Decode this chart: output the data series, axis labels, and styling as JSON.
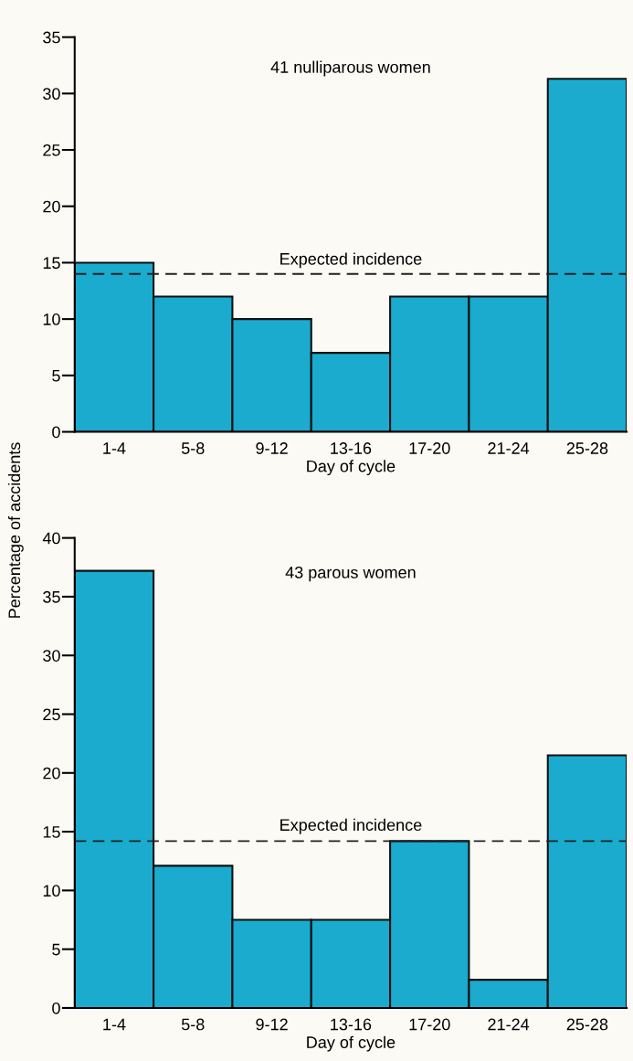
{
  "chart_data": [
    {
      "type": "bar",
      "title": "41 nulliparous women",
      "xlabel": "Day of cycle",
      "ylabel": "Percentage of accidents",
      "categories": [
        "1-4",
        "5-8",
        "9-12",
        "13-16",
        "17-20",
        "21-24",
        "25-28"
      ],
      "series": [
        {
          "color": "#1aabcf",
          "values": [
            15,
            12,
            10,
            7,
            12,
            12,
            31.3
          ]
        }
      ],
      "ylim": [
        0,
        35
      ],
      "yticks": [
        0,
        5,
        10,
        15,
        20,
        25,
        30,
        35
      ],
      "grid": false,
      "legend": false,
      "ref_lines": [
        {
          "axis": "y",
          "value": 14,
          "label": "Expected incidence",
          "line_style": "dashed",
          "color": "#222222"
        }
      ]
    },
    {
      "type": "bar",
      "title": "43 parous women",
      "xlabel": "Day of cycle",
      "categories": [
        "1-4",
        "5-8",
        "9-12",
        "13-16",
        "17-20",
        "21-24",
        "25-28"
      ],
      "series": [
        {
          "color": "#1aabcf",
          "values": [
            37.2,
            12.1,
            7.5,
            7.5,
            14.2,
            2.4,
            21.5
          ]
        }
      ],
      "ylim": [
        0,
        40
      ],
      "yticks": [
        0,
        5,
        10,
        15,
        20,
        25,
        30,
        35,
        40
      ],
      "grid": false,
      "legend": false,
      "ref_lines": [
        {
          "axis": "y",
          "value": 14.2,
          "label": "Expected incidence",
          "line_style": "dashed",
          "color": "#222222"
        }
      ]
    }
  ]
}
